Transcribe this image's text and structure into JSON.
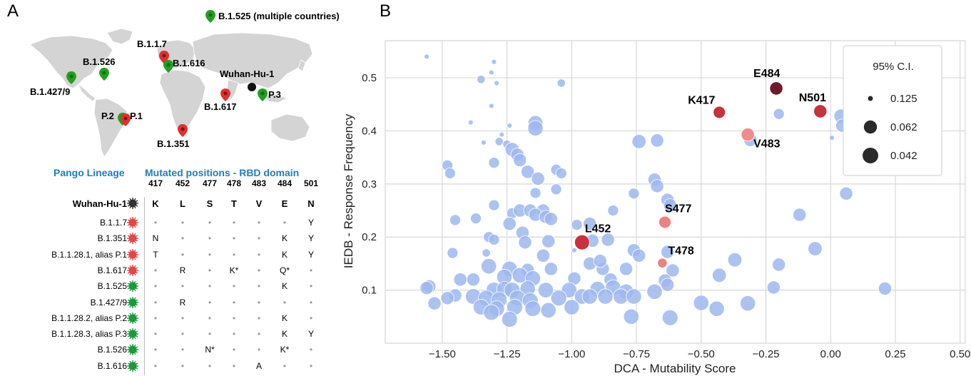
{
  "panel_a_letter": "A",
  "panel_b_letter": "B",
  "map": {
    "pins": [
      {
        "label": "B.1.525 (multiple countries)",
        "color": "green"
      },
      {
        "label": "B.1.1.7",
        "color": "red"
      },
      {
        "label": "B.1.616",
        "color": "green"
      },
      {
        "label": "B.1.526",
        "color": "green"
      },
      {
        "label": "B.1.427/9",
        "color": "green"
      },
      {
        "label": "Wuhan-Hu-1",
        "color": "black"
      },
      {
        "label": "P.3",
        "color": "green"
      },
      {
        "label": "B.1.617",
        "color": "red"
      },
      {
        "label": "P.2",
        "color": "green"
      },
      {
        "label": "P.1",
        "color": "red"
      },
      {
        "label": "B.1.351",
        "color": "red"
      }
    ]
  },
  "table": {
    "header_lineage": "Pango Lineage",
    "header_positions": "Mutated positions - RBD domain",
    "positions": [
      "417",
      "452",
      "477",
      "478",
      "483",
      "484",
      "501"
    ],
    "reference": {
      "name": "Wuhan-Hu-1",
      "color": "black",
      "residues": [
        "K",
        "L",
        "S",
        "T",
        "V",
        "E",
        "N"
      ]
    },
    "rows": [
      {
        "name": "B.1.1.7",
        "color": "red",
        "cells": [
          "•",
          "•",
          "•",
          "•",
          "•",
          "•",
          "Y"
        ]
      },
      {
        "name": "B.1.351",
        "color": "red",
        "cells": [
          "N",
          "•",
          "•",
          "•",
          "•",
          "K",
          "Y"
        ]
      },
      {
        "name": "B.1.1.28.1, alias P.1",
        "color": "red",
        "cells": [
          "T",
          "•",
          "•",
          "•",
          "•",
          "K",
          "Y"
        ]
      },
      {
        "name": "B.1.617",
        "color": "red",
        "cells": [
          "•",
          "R",
          "•",
          "K*",
          "•",
          "Q*",
          "•"
        ]
      },
      {
        "name": "B.1.525",
        "color": "green",
        "cells": [
          "•",
          "•",
          "•",
          "•",
          "•",
          "K",
          "•"
        ]
      },
      {
        "name": "B.1.427/9",
        "color": "green",
        "cells": [
          "•",
          "R",
          "•",
          "•",
          "•",
          "•",
          "•"
        ]
      },
      {
        "name": "B.1.1.28.2, alias P.2",
        "color": "green",
        "cells": [
          "•",
          "•",
          "•",
          "•",
          "•",
          "K",
          "•"
        ]
      },
      {
        "name": "B.1.1.28.3, alias P.3",
        "color": "green",
        "cells": [
          "•",
          "•",
          "•",
          "•",
          "•",
          "K",
          "Y"
        ]
      },
      {
        "name": "B.1.526",
        "color": "green",
        "cells": [
          "•",
          "•",
          "N*",
          "•",
          "•",
          "K*",
          "•"
        ]
      },
      {
        "name": "B.1.616",
        "color": "green",
        "cells": [
          "•",
          "•",
          "•",
          "•",
          "A",
          "•",
          "•"
        ]
      }
    ]
  },
  "chart_data": {
    "type": "scatter",
    "xlabel": "DCA - Mutability Score",
    "ylabel": "IEDB - Response Frequency",
    "xlim": [
      -1.72,
      0.52
    ],
    "ylim": [
      0.0,
      0.57
    ],
    "xticks": [
      "−1.50",
      "−1.25",
      "−1.00",
      "−0.75",
      "−0.50",
      "−0.25",
      "0.00",
      "0.25",
      "0.50"
    ],
    "xtick_values": [
      -1.5,
      -1.25,
      -1.0,
      -0.75,
      -0.5,
      -0.25,
      0.0,
      0.25,
      0.5
    ],
    "yticks": [
      "0.1",
      "0.2",
      "0.3",
      "0.4",
      "0.5"
    ],
    "ytick_values": [
      0.1,
      0.2,
      0.3,
      0.4,
      0.5
    ],
    "grid": true,
    "legend": {
      "title": "95% C.I.",
      "placement": "top-right",
      "entries": [
        {
          "label": "0.125",
          "ci": 0.125
        },
        {
          "label": "0.062",
          "ci": 0.062
        },
        {
          "label": "0.042",
          "ci": 0.042
        }
      ]
    },
    "colors": {
      "background": "#9db8f0",
      "E484": "#6e1a2a",
      "K417": "#c8323c",
      "N501": "#c8323c",
      "L452": "#c8323c",
      "V483": "#f08c8c",
      "S477": "#f08080",
      "T478": "#f08080"
    },
    "highlighted": [
      {
        "label": "E484",
        "x": -0.21,
        "y": 0.48,
        "ci": 0.062,
        "color": "#6e1a2a"
      },
      {
        "label": "K417",
        "x": -0.43,
        "y": 0.435,
        "ci": 0.07,
        "color": "#c8323c"
      },
      {
        "label": "N501",
        "x": -0.04,
        "y": 0.437,
        "ci": 0.062,
        "color": "#c8323c"
      },
      {
        "label": "V483",
        "x": -0.32,
        "y": 0.393,
        "ci": 0.062,
        "color": "#f08c8c"
      },
      {
        "label": "S477",
        "x": -0.64,
        "y": 0.228,
        "ci": 0.07,
        "color": "#f08080"
      },
      {
        "label": "L452",
        "x": -0.96,
        "y": 0.19,
        "ci": 0.048,
        "color": "#c8323c"
      },
      {
        "label": "T478",
        "x": -0.65,
        "y": 0.151,
        "ci": 0.09,
        "color": "#f08080"
      }
    ],
    "points": [
      {
        "x": -1.56,
        "y": 0.54,
        "ci": 0.125
      },
      {
        "x": -1.3,
        "y": 0.53,
        "ci": 0.125
      },
      {
        "x": -1.31,
        "y": 0.51,
        "ci": 0.125
      },
      {
        "x": -1.35,
        "y": 0.497,
        "ci": 0.1
      },
      {
        "x": -1.29,
        "y": 0.49,
        "ci": 0.125
      },
      {
        "x": -1.04,
        "y": 0.49,
        "ci": 0.1
      },
      {
        "x": -1.31,
        "y": 0.447,
        "ci": 0.125
      },
      {
        "x": -1.39,
        "y": 0.416,
        "ci": 0.125
      },
      {
        "x": -1.14,
        "y": 0.415,
        "ci": 0.05
      },
      {
        "x": -1.24,
        "y": 0.41,
        "ci": 0.125
      },
      {
        "x": -1.27,
        "y": 0.393,
        "ci": 0.125
      },
      {
        "x": -1.14,
        "y": 0.405,
        "ci": 0.045
      },
      {
        "x": -1.28,
        "y": 0.38,
        "ci": 0.1
      },
      {
        "x": -1.34,
        "y": 0.378,
        "ci": 0.125
      },
      {
        "x": -1.25,
        "y": 0.375,
        "ci": 0.1
      },
      {
        "x": -1.23,
        "y": 0.365,
        "ci": 0.055
      },
      {
        "x": -1.21,
        "y": 0.355,
        "ci": 0.062
      },
      {
        "x": -1.2,
        "y": 0.345,
        "ci": 0.062
      },
      {
        "x": -1.3,
        "y": 0.34,
        "ci": 0.08
      },
      {
        "x": -1.48,
        "y": 0.335,
        "ci": 0.08
      },
      {
        "x": -1.47,
        "y": 0.32,
        "ci": 0.08
      },
      {
        "x": -1.17,
        "y": 0.323,
        "ci": 0.062
      },
      {
        "x": -1.06,
        "y": 0.327,
        "ci": 0.08
      },
      {
        "x": -1.04,
        "y": 0.32,
        "ci": 0.08
      },
      {
        "x": -1.13,
        "y": 0.31,
        "ci": 0.062
      },
      {
        "x": -0.74,
        "y": 0.38,
        "ci": 0.055
      },
      {
        "x": -0.67,
        "y": 0.382,
        "ci": 0.062
      },
      {
        "x": -0.2,
        "y": 0.432,
        "ci": 0.08
      },
      {
        "x": -0.31,
        "y": 0.383,
        "ci": 0.062
      },
      {
        "x": 0.04,
        "y": 0.428,
        "ci": 0.055
      },
      {
        "x": 0.045,
        "y": 0.41,
        "ci": 0.062
      },
      {
        "x": 0.005,
        "y": 0.387,
        "ci": 0.125
      },
      {
        "x": -0.68,
        "y": 0.308,
        "ci": 0.062
      },
      {
        "x": -0.67,
        "y": 0.296,
        "ci": 0.062
      },
      {
        "x": -0.76,
        "y": 0.282,
        "ci": 0.08
      },
      {
        "x": -0.63,
        "y": 0.27,
        "ci": 0.062
      },
      {
        "x": -0.62,
        "y": 0.26,
        "ci": 0.062
      },
      {
        "x": 0.06,
        "y": 0.282,
        "ci": 0.062
      },
      {
        "x": -1.14,
        "y": 0.283,
        "ci": 0.08
      },
      {
        "x": -1.06,
        "y": 0.29,
        "ci": 0.08
      },
      {
        "x": -1.3,
        "y": 0.26,
        "ci": 0.08
      },
      {
        "x": -1.23,
        "y": 0.245,
        "ci": 0.08
      },
      {
        "x": -1.2,
        "y": 0.25,
        "ci": 0.062
      },
      {
        "x": -1.16,
        "y": 0.25,
        "ci": 0.062
      },
      {
        "x": -1.11,
        "y": 0.25,
        "ci": 0.062
      },
      {
        "x": -1.14,
        "y": 0.242,
        "ci": 0.062
      },
      {
        "x": -1.1,
        "y": 0.238,
        "ci": 0.062
      },
      {
        "x": -1.37,
        "y": 0.235,
        "ci": 0.08
      },
      {
        "x": -1.45,
        "y": 0.232,
        "ci": 0.08
      },
      {
        "x": -1.08,
        "y": 0.234,
        "ci": 0.062
      },
      {
        "x": -1.24,
        "y": 0.225,
        "ci": 0.062
      },
      {
        "x": -0.93,
        "y": 0.225,
        "ci": 0.062
      },
      {
        "x": -0.98,
        "y": 0.223,
        "ci": 0.08
      },
      {
        "x": -0.84,
        "y": 0.25,
        "ci": 0.08
      },
      {
        "x": -1.19,
        "y": 0.208,
        "ci": 0.062
      },
      {
        "x": -1.32,
        "y": 0.2,
        "ci": 0.08
      },
      {
        "x": -1.3,
        "y": 0.195,
        "ci": 0.08
      },
      {
        "x": -1.18,
        "y": 0.19,
        "ci": 0.062
      },
      {
        "x": -1.09,
        "y": 0.192,
        "ci": 0.062
      },
      {
        "x": -0.92,
        "y": 0.193,
        "ci": 0.062
      },
      {
        "x": -0.86,
        "y": 0.195,
        "ci": 0.062
      },
      {
        "x": -0.99,
        "y": 0.175,
        "ci": 0.125
      },
      {
        "x": -1.33,
        "y": 0.17,
        "ci": 0.1
      },
      {
        "x": -1.46,
        "y": 0.17,
        "ci": 0.08
      },
      {
        "x": -0.12,
        "y": 0.242,
        "ci": 0.062
      },
      {
        "x": -0.63,
        "y": 0.172,
        "ci": 0.062
      },
      {
        "x": -0.76,
        "y": 0.175,
        "ci": 0.062
      },
      {
        "x": -0.74,
        "y": 0.165,
        "ci": 0.062
      },
      {
        "x": -0.06,
        "y": 0.178,
        "ci": 0.055
      },
      {
        "x": -0.37,
        "y": 0.157,
        "ci": 0.055
      },
      {
        "x": -0.2,
        "y": 0.148,
        "ci": 0.062
      },
      {
        "x": -1.11,
        "y": 0.165,
        "ci": 0.062
      },
      {
        "x": -1.32,
        "y": 0.145,
        "ci": 0.045
      },
      {
        "x": -1.24,
        "y": 0.14,
        "ci": 0.045
      },
      {
        "x": -1.17,
        "y": 0.138,
        "ci": 0.062
      },
      {
        "x": -1.08,
        "y": 0.14,
        "ci": 0.062
      },
      {
        "x": -0.88,
        "y": 0.14,
        "ci": 0.062
      },
      {
        "x": -0.79,
        "y": 0.14,
        "ci": 0.062
      },
      {
        "x": -0.61,
        "y": 0.137,
        "ci": 0.062
      },
      {
        "x": -0.93,
        "y": 0.15,
        "ci": 0.062
      },
      {
        "x": -0.89,
        "y": 0.155,
        "ci": 0.062
      },
      {
        "x": -1.26,
        "y": 0.125,
        "ci": 0.045
      },
      {
        "x": -1.2,
        "y": 0.128,
        "ci": 0.045
      },
      {
        "x": -1.15,
        "y": 0.122,
        "ci": 0.045
      },
      {
        "x": -1.38,
        "y": 0.12,
        "ci": 0.062
      },
      {
        "x": -1.43,
        "y": 0.12,
        "ci": 0.062
      },
      {
        "x": -0.99,
        "y": 0.122,
        "ci": 0.062
      },
      {
        "x": -0.85,
        "y": 0.12,
        "ci": 0.062
      },
      {
        "x": -0.43,
        "y": 0.128,
        "ci": 0.055
      },
      {
        "x": -0.64,
        "y": 0.118,
        "ci": 0.062
      },
      {
        "x": -0.63,
        "y": 0.11,
        "ci": 0.062
      },
      {
        "x": -0.22,
        "y": 0.105,
        "ci": 0.062
      },
      {
        "x": 0.21,
        "y": 0.103,
        "ci": 0.062
      },
      {
        "x": -1.55,
        "y": 0.107,
        "ci": 0.062
      },
      {
        "x": -1.56,
        "y": 0.104,
        "ci": 0.062
      },
      {
        "x": -1.3,
        "y": 0.1,
        "ci": 0.042
      },
      {
        "x": -1.26,
        "y": 0.102,
        "ci": 0.045
      },
      {
        "x": -1.23,
        "y": 0.1,
        "ci": 0.042
      },
      {
        "x": -1.17,
        "y": 0.103,
        "ci": 0.045
      },
      {
        "x": -1.1,
        "y": 0.1,
        "ci": 0.045
      },
      {
        "x": -1.01,
        "y": 0.1,
        "ci": 0.045
      },
      {
        "x": -0.9,
        "y": 0.102,
        "ci": 0.045
      },
      {
        "x": -0.84,
        "y": 0.105,
        "ci": 0.045
      },
      {
        "x": -0.79,
        "y": 0.097,
        "ci": 0.045
      },
      {
        "x": -0.68,
        "y": 0.097,
        "ci": 0.045
      },
      {
        "x": -1.45,
        "y": 0.09,
        "ci": 0.062
      },
      {
        "x": -1.48,
        "y": 0.085,
        "ci": 0.062
      },
      {
        "x": -1.38,
        "y": 0.088,
        "ci": 0.042
      },
      {
        "x": -1.33,
        "y": 0.085,
        "ci": 0.042
      },
      {
        "x": -1.28,
        "y": 0.082,
        "ci": 0.042
      },
      {
        "x": -1.21,
        "y": 0.085,
        "ci": 0.042
      },
      {
        "x": -1.16,
        "y": 0.08,
        "ci": 0.042
      },
      {
        "x": -1.05,
        "y": 0.085,
        "ci": 0.042
      },
      {
        "x": -0.96,
        "y": 0.088,
        "ci": 0.045
      },
      {
        "x": -0.93,
        "y": 0.088,
        "ci": 0.045
      },
      {
        "x": -0.87,
        "y": 0.088,
        "ci": 0.045
      },
      {
        "x": -0.81,
        "y": 0.088,
        "ci": 0.045
      },
      {
        "x": -0.76,
        "y": 0.088,
        "ci": 0.045
      },
      {
        "x": -1.53,
        "y": 0.075,
        "ci": 0.062
      },
      {
        "x": -1.35,
        "y": 0.068,
        "ci": 0.042
      },
      {
        "x": -1.29,
        "y": 0.065,
        "ci": 0.042
      },
      {
        "x": -1.22,
        "y": 0.068,
        "ci": 0.042
      },
      {
        "x": -1.15,
        "y": 0.065,
        "ci": 0.042
      },
      {
        "x": -1.09,
        "y": 0.062,
        "ci": 0.045
      },
      {
        "x": -1.0,
        "y": 0.068,
        "ci": 0.045
      },
      {
        "x": -0.5,
        "y": 0.076,
        "ci": 0.045
      },
      {
        "x": -0.44,
        "y": 0.065,
        "ci": 0.045
      },
      {
        "x": -0.32,
        "y": 0.075,
        "ci": 0.045
      },
      {
        "x": -1.24,
        "y": 0.045,
        "ci": 0.042
      },
      {
        "x": -0.62,
        "y": 0.048,
        "ci": 0.042
      },
      {
        "x": -0.77,
        "y": 0.05,
        "ci": 0.045
      },
      {
        "x": -1.31,
        "y": 0.058,
        "ci": 0.042
      }
    ]
  }
}
